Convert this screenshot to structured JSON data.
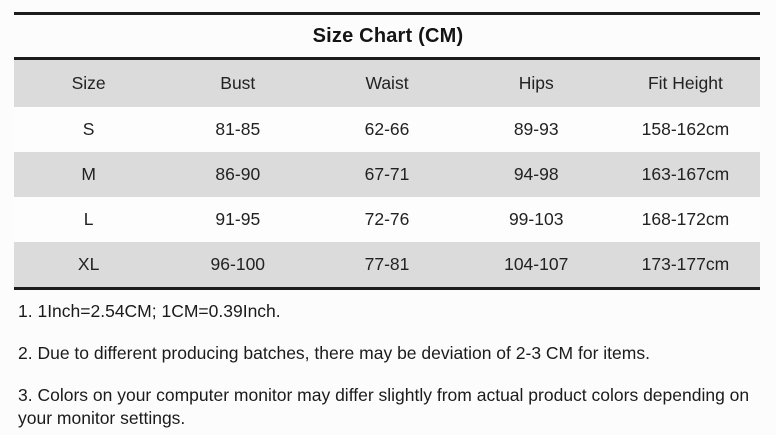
{
  "title": "Size Chart (CM)",
  "table": {
    "columns": [
      "Size",
      "Bust",
      "Waist",
      "Hips",
      "Fit Height"
    ],
    "rows": [
      {
        "cells": [
          "S",
          "81-85",
          "62-66",
          "89-93",
          "158-162cm"
        ]
      },
      {
        "cells": [
          "M",
          "86-90",
          "67-71",
          "94-98",
          "163-167cm"
        ]
      },
      {
        "cells": [
          "L",
          "91-95",
          "72-76",
          "99-103",
          "168-172cm"
        ]
      },
      {
        "cells": [
          "XL",
          "96-100",
          "77-81",
          "104-107",
          "173-177cm"
        ]
      }
    ]
  },
  "notes": [
    "1. 1Inch=2.54CM; 1CM=0.39Inch.",
    "2. Due to different producing batches, there may be deviation of 2-3 CM for items.",
    "3. Colors on your computer monitor may differ slightly from actual product colors depending on your monitor settings."
  ],
  "colors": {
    "shaded_row": "#dbdbdb",
    "plain_row": "#fdfdfd",
    "rule_line": "#1c1c1c",
    "text": "#1e1e1e",
    "background": "#fcfcfc"
  },
  "chart_data": {
    "type": "table",
    "title": "Size Chart (CM)",
    "columns": [
      "Size",
      "Bust",
      "Waist",
      "Hips",
      "Fit Height"
    ],
    "rows": [
      [
        "S",
        "81-85",
        "62-66",
        "89-93",
        "158-162cm"
      ],
      [
        "M",
        "86-90",
        "67-71",
        "94-98",
        "163-167cm"
      ],
      [
        "L",
        "91-95",
        "72-76",
        "99-103",
        "168-172cm"
      ],
      [
        "XL",
        "96-100",
        "77-81",
        "104-107",
        "173-177cm"
      ]
    ],
    "notes": [
      "1. 1Inch=2.54CM; 1CM=0.39Inch.",
      "2. Due to different producing batches, there may be deviation of 2-3 CM for items.",
      "3. Colors on your computer monitor may differ slightly from actual product colors depending on your monitor settings."
    ],
    "layout_hints": {
      "header_background": "#dbdbdb",
      "alternating_rows": true,
      "shaded_rows": [
        "header",
        "M",
        "XL"
      ],
      "grid": "horizontal rules above title, below title, below last row"
    }
  }
}
